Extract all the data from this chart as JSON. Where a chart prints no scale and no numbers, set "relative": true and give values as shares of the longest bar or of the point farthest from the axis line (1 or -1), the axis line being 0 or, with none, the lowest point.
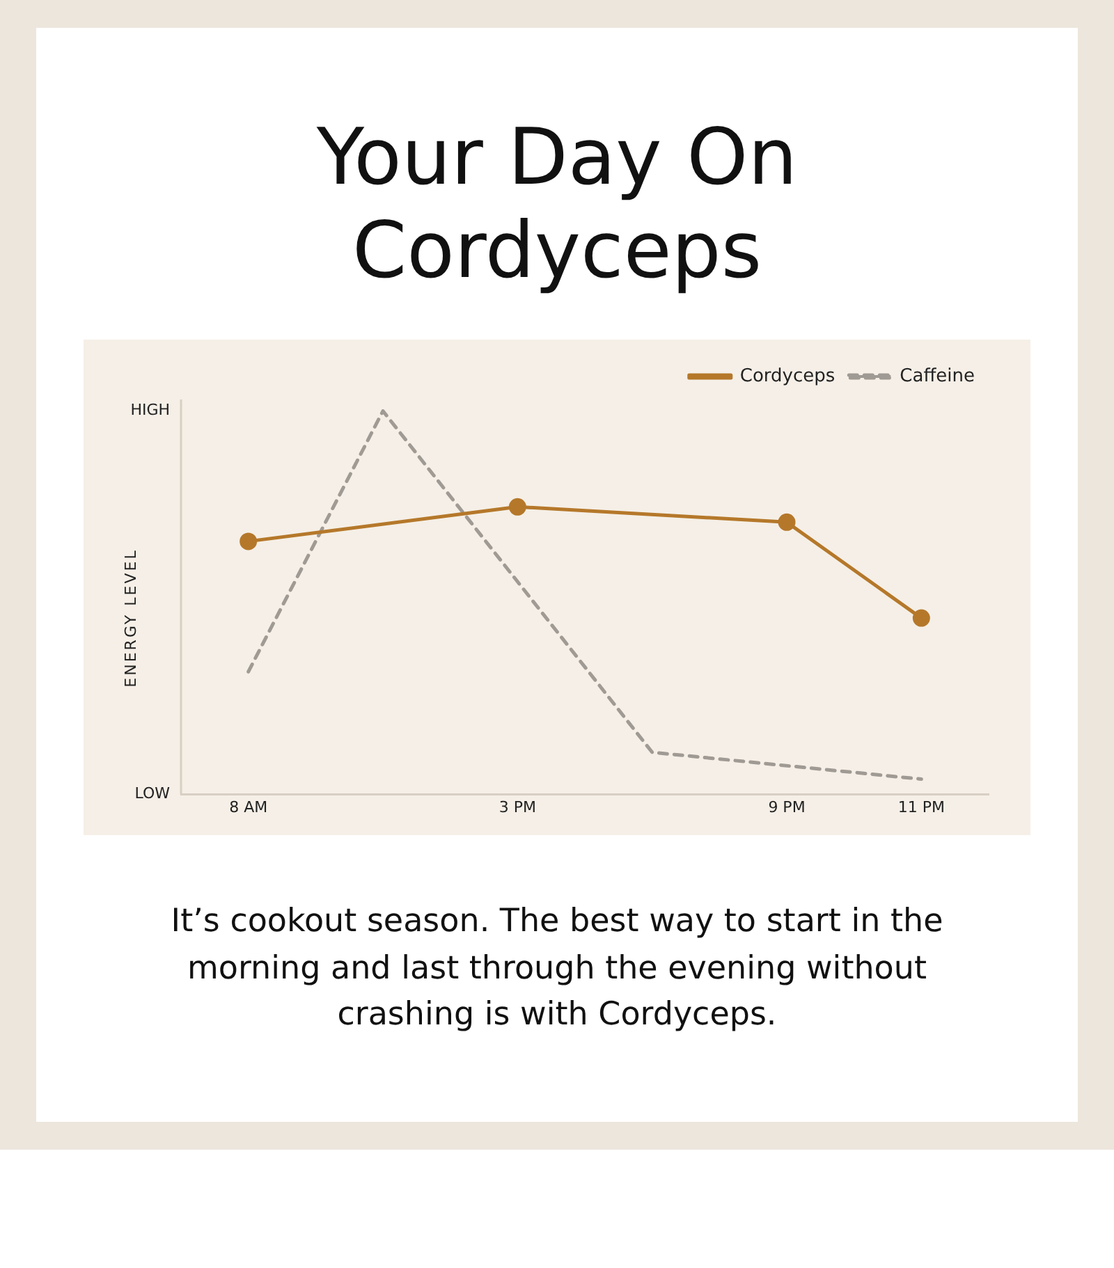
{
  "chart_data": {
    "type": "line",
    "title": "Your Day On Cordyceps",
    "ylabel": "ENERGY LEVEL",
    "relative": true,
    "categories": [
      "8 AM",
      null,
      "3 PM",
      null,
      "9 PM",
      "11 PM"
    ],
    "legend": "top right",
    "series": [
      {
        "name": "Cordyceps",
        "color": "#b5782a",
        "values": [
          0.66,
          null,
          0.75,
          null,
          0.71,
          0.46
        ],
        "marker": "circle",
        "line_style": "solid"
      },
      {
        "name": "Caffeine",
        "color": "#a09a94",
        "values": [
          0.32,
          1,
          null,
          0.11,
          null,
          0.04
        ],
        "marker": "none",
        "line_style": "dashed"
      }
    ],
    "annotations": [
      "HIGH",
      "LOW",
      "It’s cookout season. The best way to start in the morning and last through the evening without crashing is with Cordyceps."
    ]
  }
}
